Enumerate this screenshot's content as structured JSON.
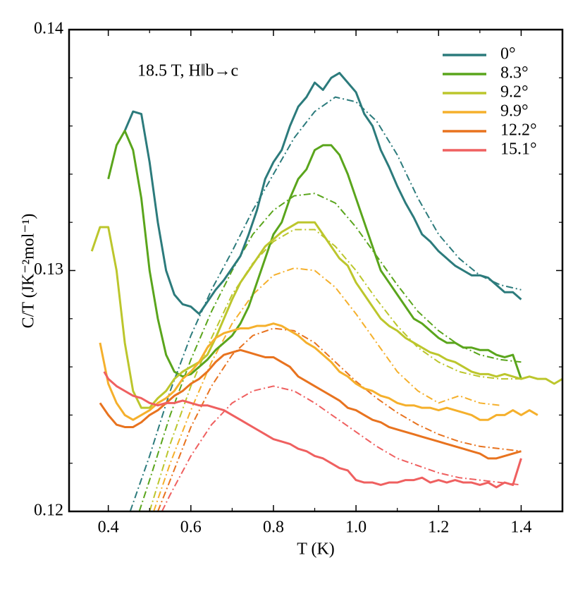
{
  "chart_data": {
    "type": "line",
    "annotation": "18.5 T, H‖b→c",
    "xlabel": "T (K)",
    "ylabel": "C/T (JK⁻²mol⁻¹)",
    "xlim": [
      0.305,
      1.5
    ],
    "ylim": [
      0.12,
      0.14
    ],
    "xticks": [
      0.4,
      0.6,
      0.8,
      {
        "value": 1,
        "label": "1.0"
      },
      1.2,
      1.4
    ],
    "yticks": [
      0.12,
      0.13,
      0.14
    ],
    "xminor": [
      0.5,
      0.7,
      0.9,
      1.1,
      1.3
    ],
    "yminor": [
      0.122,
      0.124,
      0.126,
      0.128,
      0.132,
      0.134,
      0.136,
      0.138
    ],
    "legend": "upper right",
    "series": [
      {
        "name": "0°",
        "color": "#2c7b7c",
        "x": [
          0.44,
          0.46,
          0.48,
          0.5,
          0.52,
          0.54,
          0.56,
          0.58,
          0.6,
          0.62,
          0.64,
          0.66,
          0.68,
          0.7,
          0.72,
          0.74,
          0.76,
          0.78,
          0.8,
          0.82,
          0.84,
          0.86,
          0.88,
          0.9,
          0.92,
          0.94,
          0.96,
          0.98,
          1,
          1.02,
          1.04,
          1.06,
          1.08,
          1.1,
          1.12,
          1.14,
          1.16,
          1.18,
          1.2,
          1.22,
          1.24,
          1.26,
          1.28,
          1.3,
          1.32,
          1.34,
          1.36,
          1.38,
          1.4
        ],
        "values": [
          0.1358,
          0.1366,
          0.1365,
          0.1345,
          0.132,
          0.13,
          0.129,
          0.1286,
          0.1285,
          0.1282,
          0.1287,
          0.1292,
          0.1296,
          0.1301,
          0.1306,
          0.1315,
          0.1325,
          0.1338,
          0.1345,
          0.135,
          0.136,
          0.1368,
          0.1372,
          0.1378,
          0.1375,
          0.138,
          0.1382,
          0.1378,
          0.1374,
          0.1365,
          0.136,
          0.135,
          0.1343,
          0.1335,
          0.1328,
          0.1322,
          0.1315,
          0.1312,
          0.1308,
          0.1305,
          0.1302,
          0.13,
          0.1298,
          0.1298,
          0.1297,
          0.1294,
          0.1291,
          0.1291,
          0.1288
        ],
        "fit": {
          "x": [
            0.453,
            0.5,
            0.55,
            0.6,
            0.65,
            0.7,
            0.75,
            0.8,
            0.85,
            0.9,
            0.95,
            1,
            1.05,
            1.1,
            1.15,
            1.2,
            1.25,
            1.3,
            1.35,
            1.4
          ],
          "values": [
            0.12,
            0.1223,
            0.125,
            0.1273,
            0.1292,
            0.1308,
            0.1325,
            0.134,
            0.1355,
            0.1366,
            0.1372,
            0.137,
            0.1362,
            0.1348,
            0.133,
            0.1315,
            0.1305,
            0.1298,
            0.1294,
            0.1292
          ]
        }
      },
      {
        "name": "8.3°",
        "color": "#5aa51c",
        "x": [
          0.4,
          0.42,
          0.44,
          0.46,
          0.48,
          0.5,
          0.52,
          0.54,
          0.56,
          0.58,
          0.6,
          0.62,
          0.64,
          0.66,
          0.68,
          0.7,
          0.72,
          0.74,
          0.76,
          0.78,
          0.8,
          0.82,
          0.84,
          0.86,
          0.88,
          0.9,
          0.92,
          0.94,
          0.96,
          0.98,
          1,
          1.02,
          1.04,
          1.06,
          1.08,
          1.1,
          1.12,
          1.14,
          1.16,
          1.18,
          1.2,
          1.22,
          1.24,
          1.26,
          1.28,
          1.3,
          1.32,
          1.34,
          1.36,
          1.38,
          1.4
        ],
        "values": [
          0.1338,
          0.1352,
          0.1358,
          0.135,
          0.133,
          0.13,
          0.128,
          0.1265,
          0.1258,
          0.1256,
          0.1257,
          0.126,
          0.1263,
          0.1267,
          0.127,
          0.1273,
          0.1278,
          0.1285,
          0.1295,
          0.1305,
          0.1315,
          0.132,
          0.133,
          0.1338,
          0.1342,
          0.135,
          0.1352,
          0.1352,
          0.1348,
          0.134,
          0.133,
          0.132,
          0.131,
          0.13,
          0.1295,
          0.129,
          0.1285,
          0.128,
          0.1278,
          0.1275,
          0.1272,
          0.127,
          0.127,
          0.1268,
          0.1268,
          0.1267,
          0.1267,
          0.1265,
          0.1264,
          0.1265,
          0.1255
        ],
        "fit": {
          "x": [
            0.475,
            0.5,
            0.55,
            0.6,
            0.65,
            0.7,
            0.75,
            0.8,
            0.85,
            0.9,
            0.95,
            1,
            1.05,
            1.1,
            1.15,
            1.2,
            1.25,
            1.3,
            1.35,
            1.4
          ],
          "values": [
            0.12,
            0.1213,
            0.124,
            0.1263,
            0.1283,
            0.13,
            0.1315,
            0.1325,
            0.1331,
            0.1332,
            0.1328,
            0.1318,
            0.1306,
            0.1294,
            0.1283,
            0.1275,
            0.1269,
            0.1265,
            0.1263,
            0.1262
          ]
        }
      },
      {
        "name": "9.2°",
        "color": "#bcc62c",
        "x": [
          0.36,
          0.38,
          0.4,
          0.42,
          0.44,
          0.46,
          0.48,
          0.5,
          0.52,
          0.54,
          0.56,
          0.58,
          0.6,
          0.62,
          0.64,
          0.66,
          0.68,
          0.7,
          0.72,
          0.74,
          0.76,
          0.78,
          0.8,
          0.82,
          0.84,
          0.86,
          0.88,
          0.9,
          0.92,
          0.94,
          0.96,
          0.98,
          1,
          1.02,
          1.04,
          1.06,
          1.08,
          1.1,
          1.12,
          1.14,
          1.16,
          1.18,
          1.2,
          1.22,
          1.24,
          1.26,
          1.28,
          1.3,
          1.32,
          1.34,
          1.36,
          1.38,
          1.4,
          1.42,
          1.44,
          1.46,
          1.48,
          1.5
        ],
        "values": [
          0.1308,
          0.1318,
          0.1318,
          0.13,
          0.127,
          0.125,
          0.1243,
          0.1243,
          0.1247,
          0.125,
          0.1255,
          0.1258,
          0.126,
          0.1262,
          0.1265,
          0.1272,
          0.128,
          0.1288,
          0.1295,
          0.13,
          0.1305,
          0.131,
          0.1313,
          0.1316,
          0.1318,
          0.132,
          0.132,
          0.132,
          0.1315,
          0.131,
          0.1305,
          0.1302,
          0.1295,
          0.129,
          0.1285,
          0.128,
          0.1277,
          0.1275,
          0.1272,
          0.127,
          0.1268,
          0.1266,
          0.1265,
          0.1263,
          0.1262,
          0.126,
          0.1258,
          0.1257,
          0.1257,
          0.1256,
          0.1257,
          0.1256,
          0.1255,
          0.1256,
          0.1255,
          0.1255,
          0.1253,
          0.1255
        ],
        "fit": {
          "x": [
            0.5,
            0.55,
            0.6,
            0.65,
            0.7,
            0.75,
            0.8,
            0.85,
            0.9,
            0.95,
            1,
            1.05,
            1.1,
            1.15,
            1.2,
            1.25,
            1.3,
            1.35,
            1.4
          ],
          "values": [
            0.12,
            0.1228,
            0.1252,
            0.1272,
            0.129,
            0.1303,
            0.1312,
            0.1317,
            0.1317,
            0.131,
            0.13,
            0.1288,
            0.1277,
            0.1268,
            0.1262,
            0.1258,
            0.1256,
            0.1255,
            0.1255
          ]
        }
      },
      {
        "name": "9.9°",
        "color": "#f5b02c",
        "x": [
          0.38,
          0.4,
          0.42,
          0.44,
          0.46,
          0.48,
          0.5,
          0.52,
          0.54,
          0.56,
          0.58,
          0.6,
          0.62,
          0.64,
          0.66,
          0.68,
          0.7,
          0.72,
          0.74,
          0.76,
          0.78,
          0.8,
          0.82,
          0.84,
          0.86,
          0.88,
          0.9,
          0.92,
          0.94,
          0.96,
          0.98,
          1,
          1.02,
          1.04,
          1.06,
          1.08,
          1.1,
          1.12,
          1.14,
          1.16,
          1.18,
          1.2,
          1.22,
          1.24,
          1.26,
          1.28,
          1.3,
          1.32,
          1.34,
          1.36,
          1.38,
          1.4,
          1.42,
          1.44
        ],
        "values": [
          0.127,
          0.1253,
          0.1245,
          0.124,
          0.1238,
          0.124,
          0.1242,
          0.1245,
          0.1247,
          0.125,
          0.1255,
          0.1258,
          0.1262,
          0.1268,
          0.1272,
          0.1274,
          0.1275,
          0.1276,
          0.1276,
          0.1277,
          0.1277,
          0.1278,
          0.1277,
          0.1275,
          0.1273,
          0.127,
          0.1268,
          0.1265,
          0.1262,
          0.1258,
          0.1256,
          0.1253,
          0.1251,
          0.125,
          0.1248,
          0.1247,
          0.1245,
          0.1244,
          0.1244,
          0.1243,
          0.1243,
          0.1242,
          0.1243,
          0.1242,
          0.1241,
          0.124,
          0.1238,
          0.1238,
          0.124,
          0.124,
          0.1242,
          0.124,
          0.1242,
          0.124
        ],
        "fit": {
          "x": [
            0.51,
            0.55,
            0.6,
            0.65,
            0.7,
            0.75,
            0.8,
            0.85,
            0.9,
            0.95,
            1,
            1.05,
            1.1,
            1.15,
            1.2,
            1.25,
            1.3,
            1.35
          ],
          "values": [
            0.12,
            0.122,
            0.1242,
            0.1262,
            0.1278,
            0.129,
            0.1298,
            0.1301,
            0.13,
            0.1293,
            0.1282,
            0.127,
            0.1258,
            0.125,
            0.1245,
            0.1248,
            0.1245,
            0.1244
          ]
        }
      },
      {
        "name": "12.2°",
        "color": "#e8731f",
        "x": [
          0.38,
          0.4,
          0.42,
          0.44,
          0.46,
          0.48,
          0.5,
          0.52,
          0.54,
          0.56,
          0.58,
          0.6,
          0.62,
          0.64,
          0.66,
          0.68,
          0.7,
          0.72,
          0.74,
          0.76,
          0.78,
          0.8,
          0.82,
          0.84,
          0.86,
          0.88,
          0.9,
          0.92,
          0.94,
          0.96,
          0.98,
          1,
          1.02,
          1.04,
          1.06,
          1.08,
          1.1,
          1.12,
          1.14,
          1.16,
          1.18,
          1.2,
          1.22,
          1.24,
          1.26,
          1.28,
          1.3,
          1.32,
          1.34,
          1.36,
          1.38,
          1.4
        ],
        "values": [
          0.1245,
          0.124,
          0.1236,
          0.1235,
          0.1235,
          0.1237,
          0.124,
          0.1242,
          0.1245,
          0.1248,
          0.125,
          0.1253,
          0.1255,
          0.1258,
          0.1262,
          0.1265,
          0.1266,
          0.1267,
          0.1266,
          0.1265,
          0.1264,
          0.1264,
          0.1262,
          0.126,
          0.1256,
          0.1254,
          0.1252,
          0.125,
          0.1248,
          0.1246,
          0.1243,
          0.1242,
          0.124,
          0.1238,
          0.1237,
          0.1235,
          0.1234,
          0.1233,
          0.1232,
          0.1231,
          0.123,
          0.1229,
          0.1228,
          0.1227,
          0.1226,
          0.1225,
          0.1224,
          0.1222,
          0.1222,
          0.1223,
          0.1224,
          0.1225
        ],
        "fit": {
          "x": [
            0.52,
            0.55,
            0.6,
            0.65,
            0.7,
            0.75,
            0.8,
            0.85,
            0.9,
            0.95,
            1,
            1.05,
            1.1,
            1.15,
            1.2,
            1.25,
            1.3,
            1.35,
            1.4
          ],
          "values": [
            0.12,
            0.1213,
            0.1235,
            0.1252,
            0.1265,
            0.1273,
            0.1276,
            0.1275,
            0.127,
            0.1262,
            0.1254,
            0.1247,
            0.1241,
            0.1236,
            0.1232,
            0.1229,
            0.1227,
            0.1226,
            0.1225
          ]
        }
      },
      {
        "name": "15.1°",
        "color": "#ef6060",
        "x": [
          0.39,
          0.4,
          0.42,
          0.44,
          0.46,
          0.48,
          0.5,
          0.52,
          0.54,
          0.56,
          0.58,
          0.6,
          0.62,
          0.64,
          0.66,
          0.68,
          0.7,
          0.72,
          0.74,
          0.76,
          0.78,
          0.8,
          0.82,
          0.84,
          0.86,
          0.88,
          0.9,
          0.92,
          0.94,
          0.96,
          0.98,
          1,
          1.02,
          1.04,
          1.06,
          1.08,
          1.1,
          1.12,
          1.14,
          1.16,
          1.18,
          1.2,
          1.22,
          1.24,
          1.26,
          1.28,
          1.3,
          1.32,
          1.34,
          1.36,
          1.38,
          1.4
        ],
        "values": [
          0.1258,
          0.1255,
          0.1252,
          0.125,
          0.1248,
          0.1247,
          0.1245,
          0.1244,
          0.1245,
          0.1245,
          0.1246,
          0.1245,
          0.1244,
          0.1244,
          0.1243,
          0.1242,
          0.124,
          0.1238,
          0.1236,
          0.1234,
          0.1232,
          0.123,
          0.1229,
          0.1228,
          0.1226,
          0.1225,
          0.1223,
          0.1222,
          0.122,
          0.1218,
          0.1217,
          0.1213,
          0.1212,
          0.1212,
          0.1211,
          0.1212,
          0.1212,
          0.1213,
          0.1213,
          0.1214,
          0.1212,
          0.1213,
          0.1212,
          0.1213,
          0.1212,
          0.1212,
          0.1211,
          0.1212,
          0.121,
          0.1212,
          0.1211,
          0.1222
        ],
        "fit": {
          "x": [
            0.53,
            0.55,
            0.6,
            0.65,
            0.7,
            0.75,
            0.8,
            0.85,
            0.9,
            0.95,
            1,
            1.05,
            1.1,
            1.15,
            1.2,
            1.25,
            1.3,
            1.35,
            1.4
          ],
          "values": [
            0.12,
            0.1207,
            0.1223,
            0.1236,
            0.1245,
            0.125,
            0.1252,
            0.125,
            0.1245,
            0.1239,
            0.1233,
            0.1227,
            0.1222,
            0.1219,
            0.1216,
            0.1214,
            0.1213,
            0.1212,
            0.1211
          ]
        }
      }
    ]
  }
}
